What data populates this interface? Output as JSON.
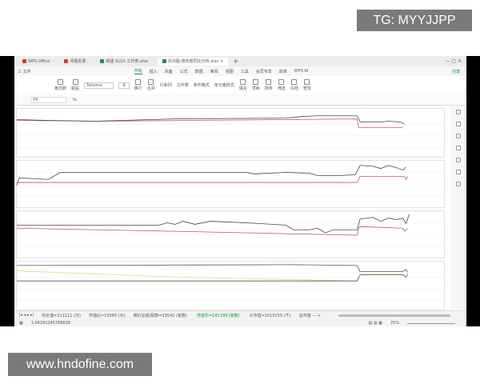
{
  "watermarks": {
    "top": "TG: MYYJJPP",
    "bottom": "www.hndofine.com"
  },
  "tabs": [
    {
      "label": "WPS Office",
      "color": "#d33"
    },
    {
      "label": "问题反馈",
      "color": "#d33"
    },
    {
      "label": "新建 XLSX 工作表.xlsx",
      "color": "#1e8f4e"
    },
    {
      "label": "反向图-按年度同比分析.xlsx",
      "color": "#1e8f4e"
    }
  ],
  "menu": {
    "file": "三 文件",
    "items": [
      "开始",
      "插入",
      "页面",
      "公式",
      "数据",
      "审阅",
      "视图",
      "工具",
      "会员专享",
      "效率",
      "WPS AI"
    ],
    "share": "分享"
  },
  "ribbon": {
    "format_painter": "格式刷",
    "paste": "粘贴",
    "font": "Tahoma",
    "size": "9",
    "wrap": "换行",
    "merge": "合并",
    "row_col": "行和列",
    "worksheet": "工作表",
    "cond_format": "条件格式",
    "cell_style": "单元格样式",
    "fill": "填充",
    "sum": "求和",
    "sort": "排序",
    "filter": "筛选",
    "freeze": "冻结",
    "find": "查找"
  },
  "formula_bar": {
    "cell_ref": "Y4",
    "fx": "fx"
  },
  "status": {
    "items": [
      "均价值=211111 (元)",
      "市值比=15065 (元)",
      "牌价总值/股数=33542 (家数)",
      "市值牛=141109 (家数)",
      "大市值=1515255 (千)",
      "总市值 — +"
    ],
    "active_index": 3,
    "value": "1.04291045768838",
    "zoom": "25%"
  },
  "colors": {
    "accent": "#1e8f4e",
    "series_dark": "#444444",
    "series_red": "#b05a6a",
    "series_yellow": "#e8e0a0"
  }
}
